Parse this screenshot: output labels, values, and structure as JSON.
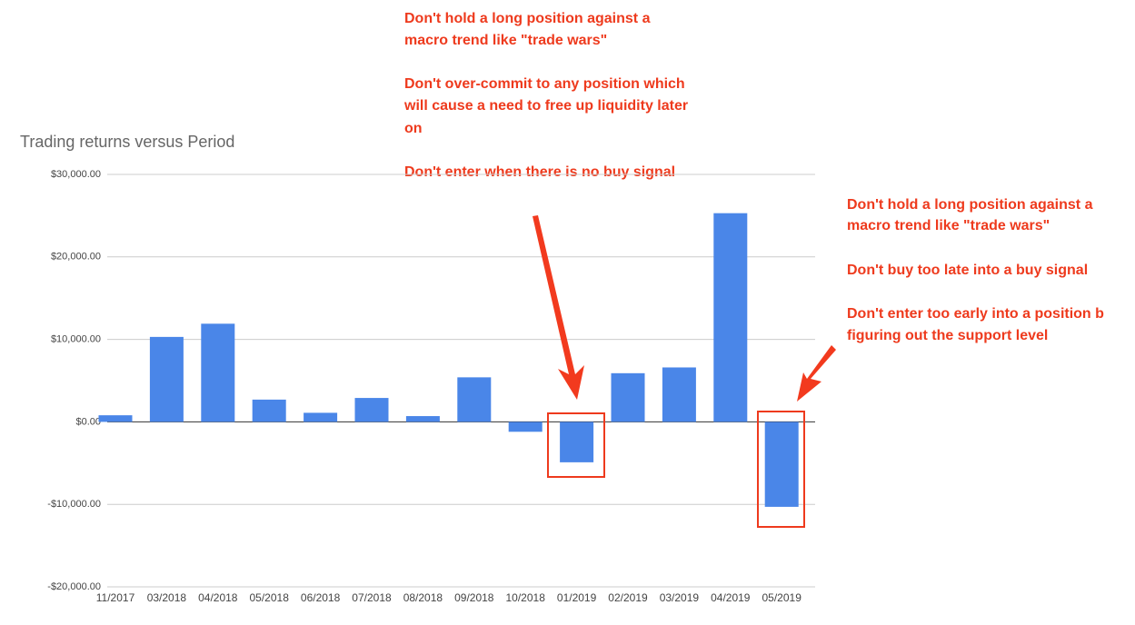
{
  "chart_data": {
    "type": "bar",
    "title": "Trading returns versus Period",
    "categories": [
      "11/2017",
      "03/2018",
      "04/2018",
      "05/2018",
      "06/2018",
      "07/2018",
      "08/2018",
      "09/2018",
      "10/2018",
      "01/2019",
      "02/2019",
      "03/2019",
      "04/2019",
      "05/2019"
    ],
    "values": [
      800,
      10300,
      11900,
      2700,
      1100,
      2900,
      700,
      5400,
      -1200,
      -4900,
      5900,
      6600,
      25300,
      -10300
    ],
    "color": "#4a86e8",
    "ylim": [
      -20000,
      30000
    ],
    "yticks": [
      {
        "value": -20000,
        "label": "-$20,000.00"
      },
      {
        "value": -10000,
        "label": "-$10,000.00"
      },
      {
        "value": 0,
        "label": "$0.00"
      },
      {
        "value": 10000,
        "label": "$10,000.00"
      },
      {
        "value": 20000,
        "label": "$20,000.00"
      },
      {
        "value": 30000,
        "label": "$30,000.00"
      }
    ],
    "grid": true,
    "annotations": [
      [
        "Don't hold a long position against a",
        "macro trend like \"trade wars\"",
        "Don't over-commit to any position which",
        "will cause a need to free up liquidity later",
        "on",
        "Don't enter when there is no buy signal"
      ],
      [
        "Don't hold a long position against a",
        "macro trend like \"trade wars\"",
        "Don't buy too late into a buy signal",
        "Don't enter too early into a position b",
        "figuring out the support level"
      ]
    ]
  }
}
